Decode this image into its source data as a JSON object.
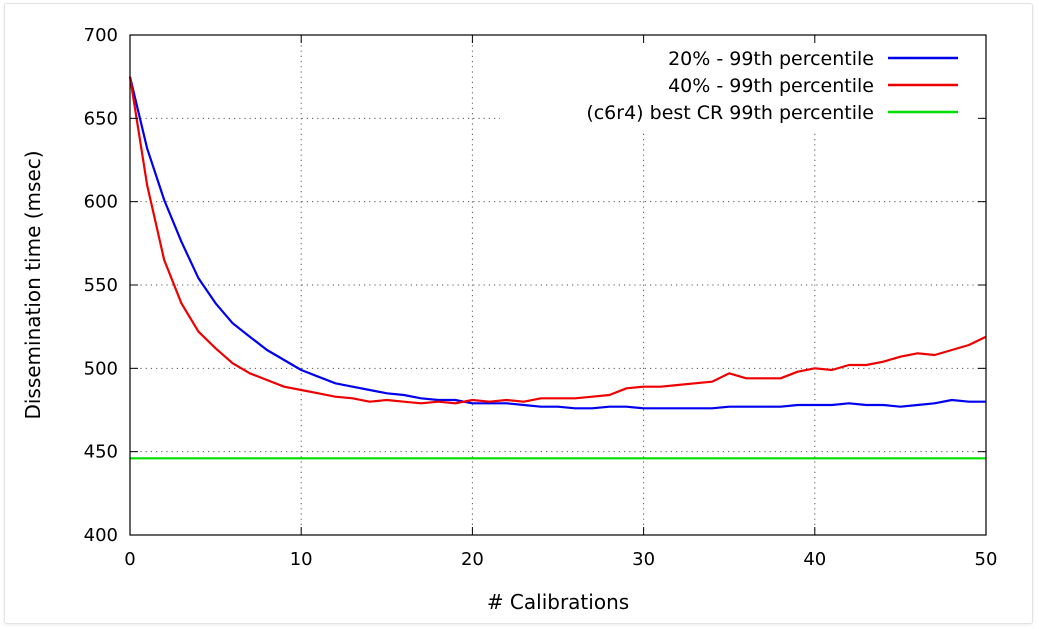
{
  "chart_data": {
    "type": "line",
    "title": "",
    "xlabel": "# Calibrations",
    "ylabel": "Dissemination time (msec)",
    "xlim": [
      0,
      50
    ],
    "ylim": [
      400,
      700
    ],
    "xticks": [
      0,
      10,
      20,
      30,
      40,
      50
    ],
    "yticks": [
      400,
      450,
      500,
      550,
      600,
      650,
      700
    ],
    "grid": "dotted",
    "legend_position": "top-right",
    "x": [
      0,
      1,
      2,
      3,
      4,
      5,
      6,
      7,
      8,
      9,
      10,
      11,
      12,
      13,
      14,
      15,
      16,
      17,
      18,
      19,
      20,
      21,
      22,
      23,
      24,
      25,
      26,
      27,
      28,
      29,
      30,
      31,
      32,
      33,
      34,
      35,
      36,
      37,
      38,
      39,
      40,
      41,
      42,
      43,
      44,
      45,
      46,
      47,
      48,
      49,
      50
    ],
    "series": [
      {
        "name": "20% - 99th percentile",
        "color": "#0000ee",
        "values": [
          675,
          632,
          601,
          576,
          554,
          539,
          527,
          519,
          511,
          505,
          499,
          495,
          491,
          489,
          487,
          485,
          484,
          482,
          481,
          481,
          479,
          479,
          479,
          478,
          477,
          477,
          476,
          476,
          477,
          477,
          476,
          476,
          476,
          476,
          476,
          477,
          477,
          477,
          477,
          478,
          478,
          478,
          479,
          478,
          478,
          477,
          478,
          479,
          481,
          480,
          480
        ]
      },
      {
        "name": "40% - 99th percentile",
        "color": "#ee0000",
        "values": [
          675,
          610,
          565,
          539,
          522,
          512,
          503,
          497,
          493,
          489,
          487,
          485,
          483,
          482,
          480,
          481,
          480,
          479,
          480,
          479,
          481,
          480,
          481,
          480,
          482,
          482,
          482,
          483,
          484,
          488,
          489,
          489,
          490,
          491,
          492,
          497,
          494,
          494,
          494,
          498,
          500,
          499,
          502,
          502,
          504,
          507,
          509,
          508,
          511,
          514,
          519
        ]
      },
      {
        "name": "(c6r4) best CR  99th percentile",
        "color": "#00dd00",
        "values": [
          446,
          446,
          446,
          446,
          446,
          446,
          446,
          446,
          446,
          446,
          446,
          446,
          446,
          446,
          446,
          446,
          446,
          446,
          446,
          446,
          446,
          446,
          446,
          446,
          446,
          446,
          446,
          446,
          446,
          446,
          446,
          446,
          446,
          446,
          446,
          446,
          446,
          446,
          446,
          446,
          446,
          446,
          446,
          446,
          446,
          446,
          446,
          446,
          446,
          446,
          446
        ]
      }
    ]
  }
}
